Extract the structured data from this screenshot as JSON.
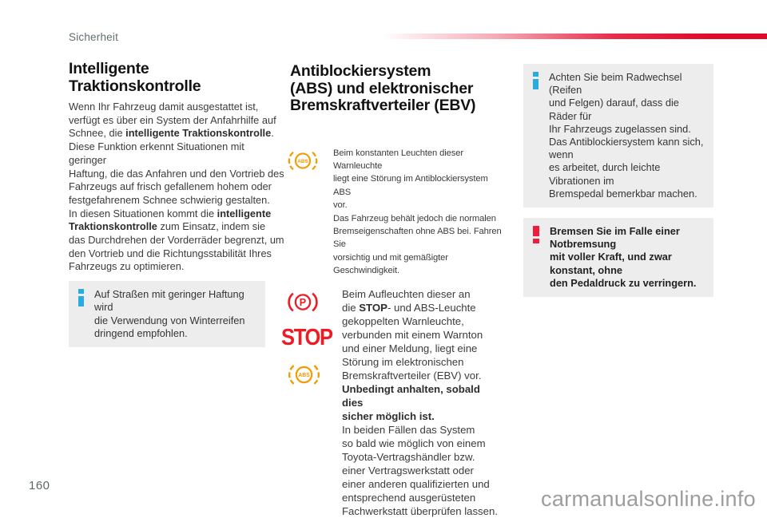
{
  "page": {
    "header_label": "Sicherheit",
    "page_number": "160",
    "watermark": "carmanualsonline.info"
  },
  "colors": {
    "accent_red_bar": "#e10a28",
    "warning_light_orange": "#f59b00",
    "warning_light_red": "#ed1c24",
    "info_icon_blue": "#29abe2",
    "warning_icon_red": "#ee1d3a",
    "box_background_gray": "#ededee"
  },
  "icons": {
    "info": "info-icon",
    "warning": "exclamation-icon",
    "abs_light": "abs-warning-light-icon",
    "parking_brake_light": "parking-brake-warning-light-icon"
  },
  "left": {
    "heading_lines": [
      "Intelligente",
      "Traktionskontrolle"
    ],
    "body_lines": [
      [
        {
          "t": "Wenn Ihr Fahrzeug damit ausgestattet ist,"
        }
      ],
      [
        {
          "t": "verfügt es über ein System der Anfahrhilfe auf"
        }
      ],
      [
        {
          "t": "Schnee, die "
        },
        {
          "t": "intelligente Traktionskontrolle",
          "b": true
        },
        {
          "t": "."
        }
      ],
      [
        {
          "t": "Diese Funktion erkennt Situationen mit geringer"
        }
      ],
      [
        {
          "t": "Haftung, die das Anfahren und den Vortrieb des"
        }
      ],
      [
        {
          "t": "Fahrzeugs auf frisch gefallenem hohem oder"
        }
      ],
      [
        {
          "t": "festgefahrenem Schnee schwierig gestalten."
        }
      ],
      [
        {
          "t": "In diesen Situationen kommt die "
        },
        {
          "t": "intelligente",
          "b": true
        }
      ],
      [
        {
          "t": "Traktionskontrolle",
          "b": true
        },
        {
          "t": " zum Einsatz, indem sie"
        }
      ],
      [
        {
          "t": "das Durchdrehen der Vorderräder begrenzt, um"
        }
      ],
      [
        {
          "t": "den Vortrieb und die Richtungsstabilität Ihres"
        }
      ],
      [
        {
          "t": "Fahrzeugs zu optimieren."
        }
      ]
    ],
    "info_box": {
      "lines": [
        "Auf Straßen mit geringer Haftung wird",
        "die Verwendung von Winterreifen",
        "dringend empfohlen."
      ]
    }
  },
  "middle": {
    "heading_lines": [
      "Antiblockiersystem",
      "(ABS) und elektronischer",
      "Bremskraftverteiler (EBV)"
    ],
    "abs_block": {
      "lines": [
        "Beim konstanten Leuchten dieser Warnleuchte",
        "liegt eine Störung im Antiblockiersystem ABS",
        "vor.",
        "Das Fahrzeug behält jedoch die normalen",
        "Bremseigenschaften ohne ABS bei. Fahren Sie",
        "vorsichtig und mit gemäßigter Geschwindigkeit."
      ]
    },
    "ebv_block": {
      "stop_label": "STOP",
      "abs_badge_text": "ABS",
      "parking_badge_text": "P",
      "body_lines": [
        [
          {
            "t": "Beim Aufleuchten dieser an"
          }
        ],
        [
          {
            "t": "die "
          },
          {
            "t": "STOP",
            "b": true
          },
          {
            "t": "- und ABS-Leuchte"
          }
        ],
        [
          {
            "t": "gekoppelten Warnleuchte,"
          }
        ],
        [
          {
            "t": "verbunden mit einem Warnton"
          }
        ],
        [
          {
            "t": "und einer Meldung, liegt eine"
          }
        ],
        [
          {
            "t": "Störung im elektronischen"
          }
        ],
        [
          {
            "t": "Bremskraftverteiler (EBV) vor."
          }
        ],
        [
          {
            "t": "Unbedingt anhalten, sobald dies",
            "b": true
          }
        ],
        [
          {
            "t": "sicher möglich ist.",
            "b": true
          }
        ],
        [
          {
            "t": "In beiden Fällen das System"
          }
        ],
        [
          {
            "t": "so bald wie möglich von einem"
          }
        ],
        [
          {
            "t": "Toyota-Vertragshändler bzw."
          }
        ],
        [
          {
            "t": "einer Vertragswerkstatt oder"
          }
        ],
        [
          {
            "t": "einer anderen qualifizierten und"
          }
        ],
        [
          {
            "t": "entsprechend ausgerüsteten"
          }
        ],
        [
          {
            "t": "Fachwerkstatt überprüfen lassen."
          }
        ]
      ]
    }
  },
  "right": {
    "info_box": {
      "lines": [
        "Achten Sie beim Radwechsel (Reifen",
        "und Felgen) darauf, dass die Räder für",
        "Ihr Fahrzeugs zugelassen sind.",
        "Das Antiblockiersystem kann sich, wenn",
        "es arbeitet, durch leichte Vibrationen im",
        "Bremspedal bemerkbar machen."
      ]
    },
    "warning_box": {
      "lines": [
        "Bremsen Sie im Falle einer Notbremsung",
        "mit voller Kraft, und zwar konstant, ohne",
        "den Pedaldruck zu verringern."
      ]
    }
  }
}
